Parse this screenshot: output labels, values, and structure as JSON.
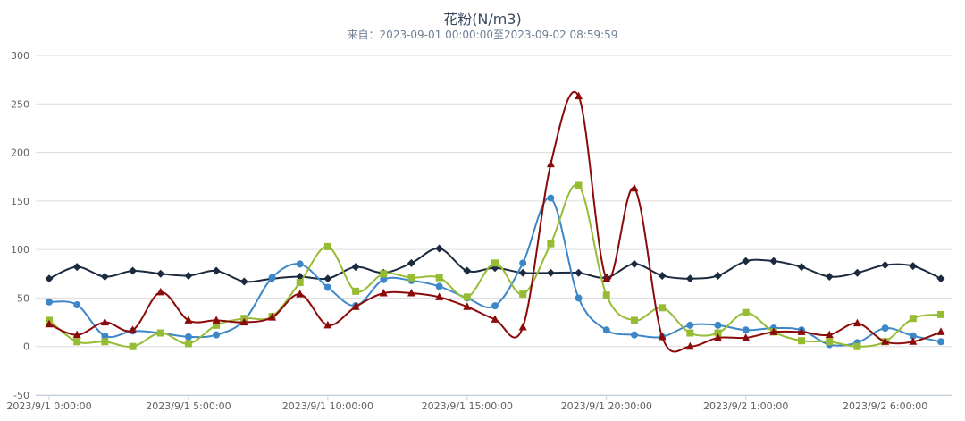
{
  "chart_data": {
    "type": "line",
    "title": "花粉(N/m3)",
    "subtitle": "来自：2023-09-01 00:00:00至2023-09-02 08:59:59",
    "x": [
      "2023/9/1 0:00:00",
      "2023/9/1 1:00:00",
      "2023/9/1 2:00:00",
      "2023/9/1 3:00:00",
      "2023/9/1 4:00:00",
      "2023/9/1 5:00:00",
      "2023/9/1 6:00:00",
      "2023/9/1 7:00:00",
      "2023/9/1 8:00:00",
      "2023/9/1 9:00:00",
      "2023/9/1 10:00:00",
      "2023/9/1 11:00:00",
      "2023/9/1 12:00:00",
      "2023/9/1 13:00:00",
      "2023/9/1 14:00:00",
      "2023/9/1 15:00:00",
      "2023/9/1 16:00:00",
      "2023/9/1 17:00:00",
      "2023/9/1 18:00:00",
      "2023/9/1 19:00:00",
      "2023/9/1 20:00:00",
      "2023/9/1 21:00:00",
      "2023/9/1 22:00:00",
      "2023/9/1 23:00:00",
      "2023/9/2 0:00:00",
      "2023/9/2 1:00:00",
      "2023/9/2 2:00:00",
      "2023/9/2 3:00:00",
      "2023/9/2 4:00:00",
      "2023/9/2 5:00:00",
      "2023/9/2 6:00:00",
      "2023/9/2 7:00:00",
      "2023/9/2 8:00:00"
    ],
    "x_tick_labels": [
      {
        "index": 0,
        "label": "2023/9/1 0:00:00"
      },
      {
        "index": 5,
        "label": "2023/9/1 5:00:00"
      },
      {
        "index": 10,
        "label": "2023/9/1 10:00:00"
      },
      {
        "index": 15,
        "label": "2023/9/1 15:00:00"
      },
      {
        "index": 20,
        "label": "2023/9/1 20:00:00"
      },
      {
        "index": 25,
        "label": "2023/9/2 1:00:00"
      },
      {
        "index": 30,
        "label": "2023/9/2 6:00:00"
      }
    ],
    "ylim": [
      -50,
      300
    ],
    "yticks": [
      -50,
      0,
      50,
      100,
      150,
      200,
      250,
      300
    ],
    "grid": true,
    "legend": "none",
    "series": [
      {
        "color": "#1b2a3e",
        "marker": "diamond",
        "values": [
          70,
          82,
          72,
          78,
          75,
          73,
          78,
          67,
          70,
          72,
          70,
          82,
          76,
          86,
          101,
          78,
          81,
          76,
          76,
          76,
          71,
          85,
          73,
          70,
          73,
          88,
          88,
          82,
          72,
          76,
          84,
          83,
          70
        ]
      },
      {
        "color": "#3d87c9",
        "marker": "circle",
        "values": [
          46,
          43,
          11,
          16,
          14,
          10,
          12,
          27,
          71,
          85,
          61,
          42,
          69,
          68,
          62,
          50,
          42,
          86,
          153,
          50,
          17,
          12,
          10,
          22,
          22,
          17,
          19,
          17,
          2,
          4,
          19,
          11,
          5
        ]
      },
      {
        "color": "#96bc33",
        "marker": "square",
        "values": [
          27,
          5,
          5,
          0,
          14,
          3,
          22,
          29,
          31,
          66,
          103,
          57,
          75,
          71,
          71,
          51,
          86,
          54,
          106,
          166,
          53,
          27,
          40,
          14,
          14,
          35,
          15,
          6,
          5,
          0,
          5,
          29,
          33
        ]
      },
      {
        "color": "#8b0a0a",
        "marker": "triangle",
        "values": [
          23,
          12,
          25,
          17,
          56,
          27,
          27,
          25,
          30,
          54,
          22,
          41,
          55,
          55,
          51,
          41,
          28,
          20,
          188,
          258,
          70,
          163,
          10,
          0,
          9,
          9,
          15,
          15,
          12,
          24,
          5,
          5,
          15
        ]
      }
    ]
  }
}
